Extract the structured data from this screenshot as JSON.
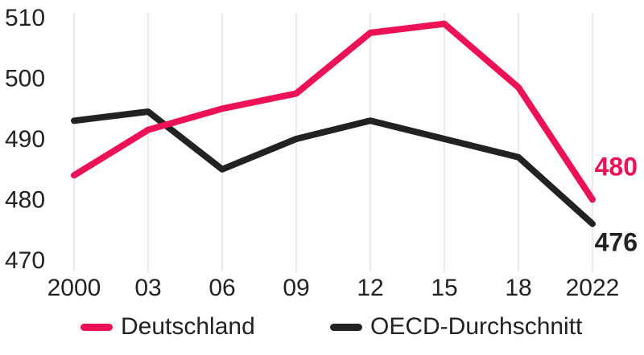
{
  "chart_data": {
    "type": "line",
    "x": [
      "2000",
      "03",
      "06",
      "09",
      "12",
      "15",
      "18",
      "2022"
    ],
    "ylim": [
      470,
      510
    ],
    "yticks": [
      470,
      480,
      490,
      500,
      510
    ],
    "grid": "vertical",
    "legend_placement": "bottom",
    "series": [
      {
        "name": "Deutschland",
        "color": "#ee1155",
        "values": [
          484,
          491.5,
          495,
          497.5,
          507.5,
          509,
          498.5,
          480
        ],
        "end_label": "480"
      },
      {
        "name": "OECD-Durchschnitt",
        "color": "#222222",
        "values": [
          493,
          494.5,
          485,
          490,
          493,
          490,
          487,
          476
        ],
        "end_label": "476"
      }
    ]
  }
}
